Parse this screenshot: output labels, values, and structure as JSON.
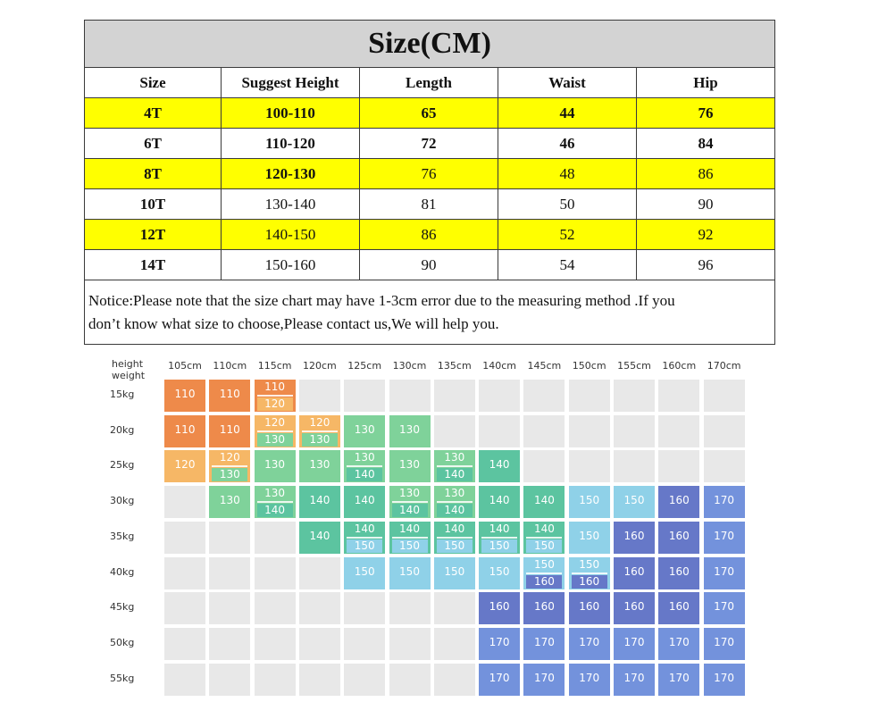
{
  "size_chart": {
    "title": "Size(CM)",
    "headers": [
      "Size",
      "Suggest Height",
      "Length",
      "Waist",
      "Hip"
    ],
    "rows": [
      {
        "cells": [
          "4T",
          "100-110",
          "65",
          "44",
          "76"
        ],
        "highlight": true,
        "bold_to": 5
      },
      {
        "cells": [
          "6T",
          "110-120",
          "72",
          "46",
          "84"
        ],
        "highlight": false,
        "bold_to": 5
      },
      {
        "cells": [
          "8T",
          "120-130",
          "76",
          "48",
          "86"
        ],
        "highlight": true,
        "bold_to": 2
      },
      {
        "cells": [
          "10T",
          "130-140",
          "81",
          "50",
          "90"
        ],
        "highlight": false,
        "bold_to": 1
      },
      {
        "cells": [
          "12T",
          "140-150",
          "86",
          "52",
          "92"
        ],
        "highlight": true,
        "bold_to": 1
      },
      {
        "cells": [
          "14T",
          "150-160",
          "90",
          "54",
          "96"
        ],
        "highlight": false,
        "bold_to": 1
      }
    ],
    "notice_line1": "Notice:Please note that the size chart may have 1-3cm error due to the measuring method .If you",
    "notice_line2": "don’t know what size to choose,Please contact us,We will help you."
  },
  "height_weight_grid": {
    "corner_label_top": "height",
    "corner_label_bottom": "weight",
    "heights": [
      "105cm",
      "110cm",
      "115cm",
      "120cm",
      "125cm",
      "130cm",
      "135cm",
      "140cm",
      "145cm",
      "150cm",
      "155cm",
      "160cm",
      "170cm"
    ],
    "weights": [
      "15kg",
      "20kg",
      "25kg",
      "30kg",
      "35kg",
      "40kg",
      "45kg",
      "50kg",
      "55kg"
    ],
    "size_colors": {
      "110": "#ee8a4a",
      "120": "#f6b766",
      "130": "#7fd29a",
      "140": "#5cc4a0",
      "150": "#8fd1e8",
      "160": "#6678c8",
      "170": "#7392dc"
    },
    "empty_color": "#e8e8e8",
    "cells": [
      [
        [
          "110"
        ],
        [
          "110"
        ],
        [
          "110",
          "120"
        ],
        [],
        [],
        [],
        [],
        [],
        [],
        [],
        [],
        [],
        []
      ],
      [
        [
          "110"
        ],
        [
          "110"
        ],
        [
          "120",
          "130"
        ],
        [
          "120",
          "130"
        ],
        [
          "130"
        ],
        [
          "130"
        ],
        [],
        [],
        [],
        [],
        [],
        [],
        []
      ],
      [
        [
          "120"
        ],
        [
          "120",
          "130"
        ],
        [
          "130"
        ],
        [
          "130"
        ],
        [
          "130",
          "140"
        ],
        [
          "130"
        ],
        [
          "130",
          "140"
        ],
        [
          "140"
        ],
        [],
        [],
        [],
        [],
        []
      ],
      [
        [],
        [
          "130"
        ],
        [
          "130",
          "140"
        ],
        [
          "140"
        ],
        [
          "140"
        ],
        [
          "130",
          "140"
        ],
        [
          "130",
          "140"
        ],
        [
          "140"
        ],
        [
          "140"
        ],
        [
          "150"
        ],
        [
          "150"
        ],
        [
          "160"
        ],
        [
          "170"
        ]
      ],
      [
        [],
        [],
        [],
        [
          "140"
        ],
        [
          "140",
          "150"
        ],
        [
          "140",
          "150"
        ],
        [
          "140",
          "150"
        ],
        [
          "140",
          "150"
        ],
        [
          "140",
          "150"
        ],
        [
          "150"
        ],
        [
          "160"
        ],
        [
          "160"
        ],
        [
          "170"
        ]
      ],
      [
        [],
        [],
        [],
        [],
        [
          "150"
        ],
        [
          "150"
        ],
        [
          "150"
        ],
        [
          "150"
        ],
        [
          "150",
          "160"
        ],
        [
          "150",
          "160"
        ],
        [
          "160"
        ],
        [
          "160"
        ],
        [
          "170"
        ]
      ],
      [
        [],
        [],
        [],
        [],
        [],
        [],
        [],
        [
          "160"
        ],
        [
          "160"
        ],
        [
          "160"
        ],
        [
          "160"
        ],
        [
          "160"
        ],
        [
          "170"
        ]
      ],
      [
        [],
        [],
        [],
        [],
        [],
        [],
        [],
        [
          "170"
        ],
        [
          "170"
        ],
        [
          "170"
        ],
        [
          "170"
        ],
        [
          "170"
        ],
        [
          "170"
        ]
      ],
      [
        [],
        [],
        [],
        [],
        [],
        [],
        [],
        [
          "170"
        ],
        [
          "170"
        ],
        [
          "170"
        ],
        [
          "170"
        ],
        [
          "170"
        ],
        [
          "170"
        ]
      ]
    ]
  }
}
